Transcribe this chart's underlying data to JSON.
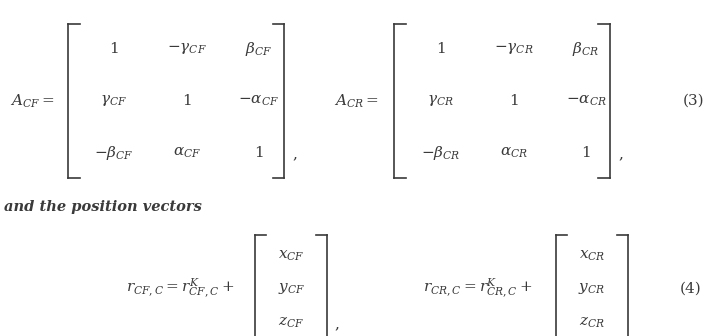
{
  "background_color": "#ffffff",
  "text_color": "#3a3a3a",
  "eq3_label": "(3)",
  "eq4_label": "(4)",
  "text_intro": "and the position vectors",
  "figsize": [
    7.19,
    3.36
  ],
  "dpi": 100,
  "fs_main": 11,
  "fs_text": 10.5
}
